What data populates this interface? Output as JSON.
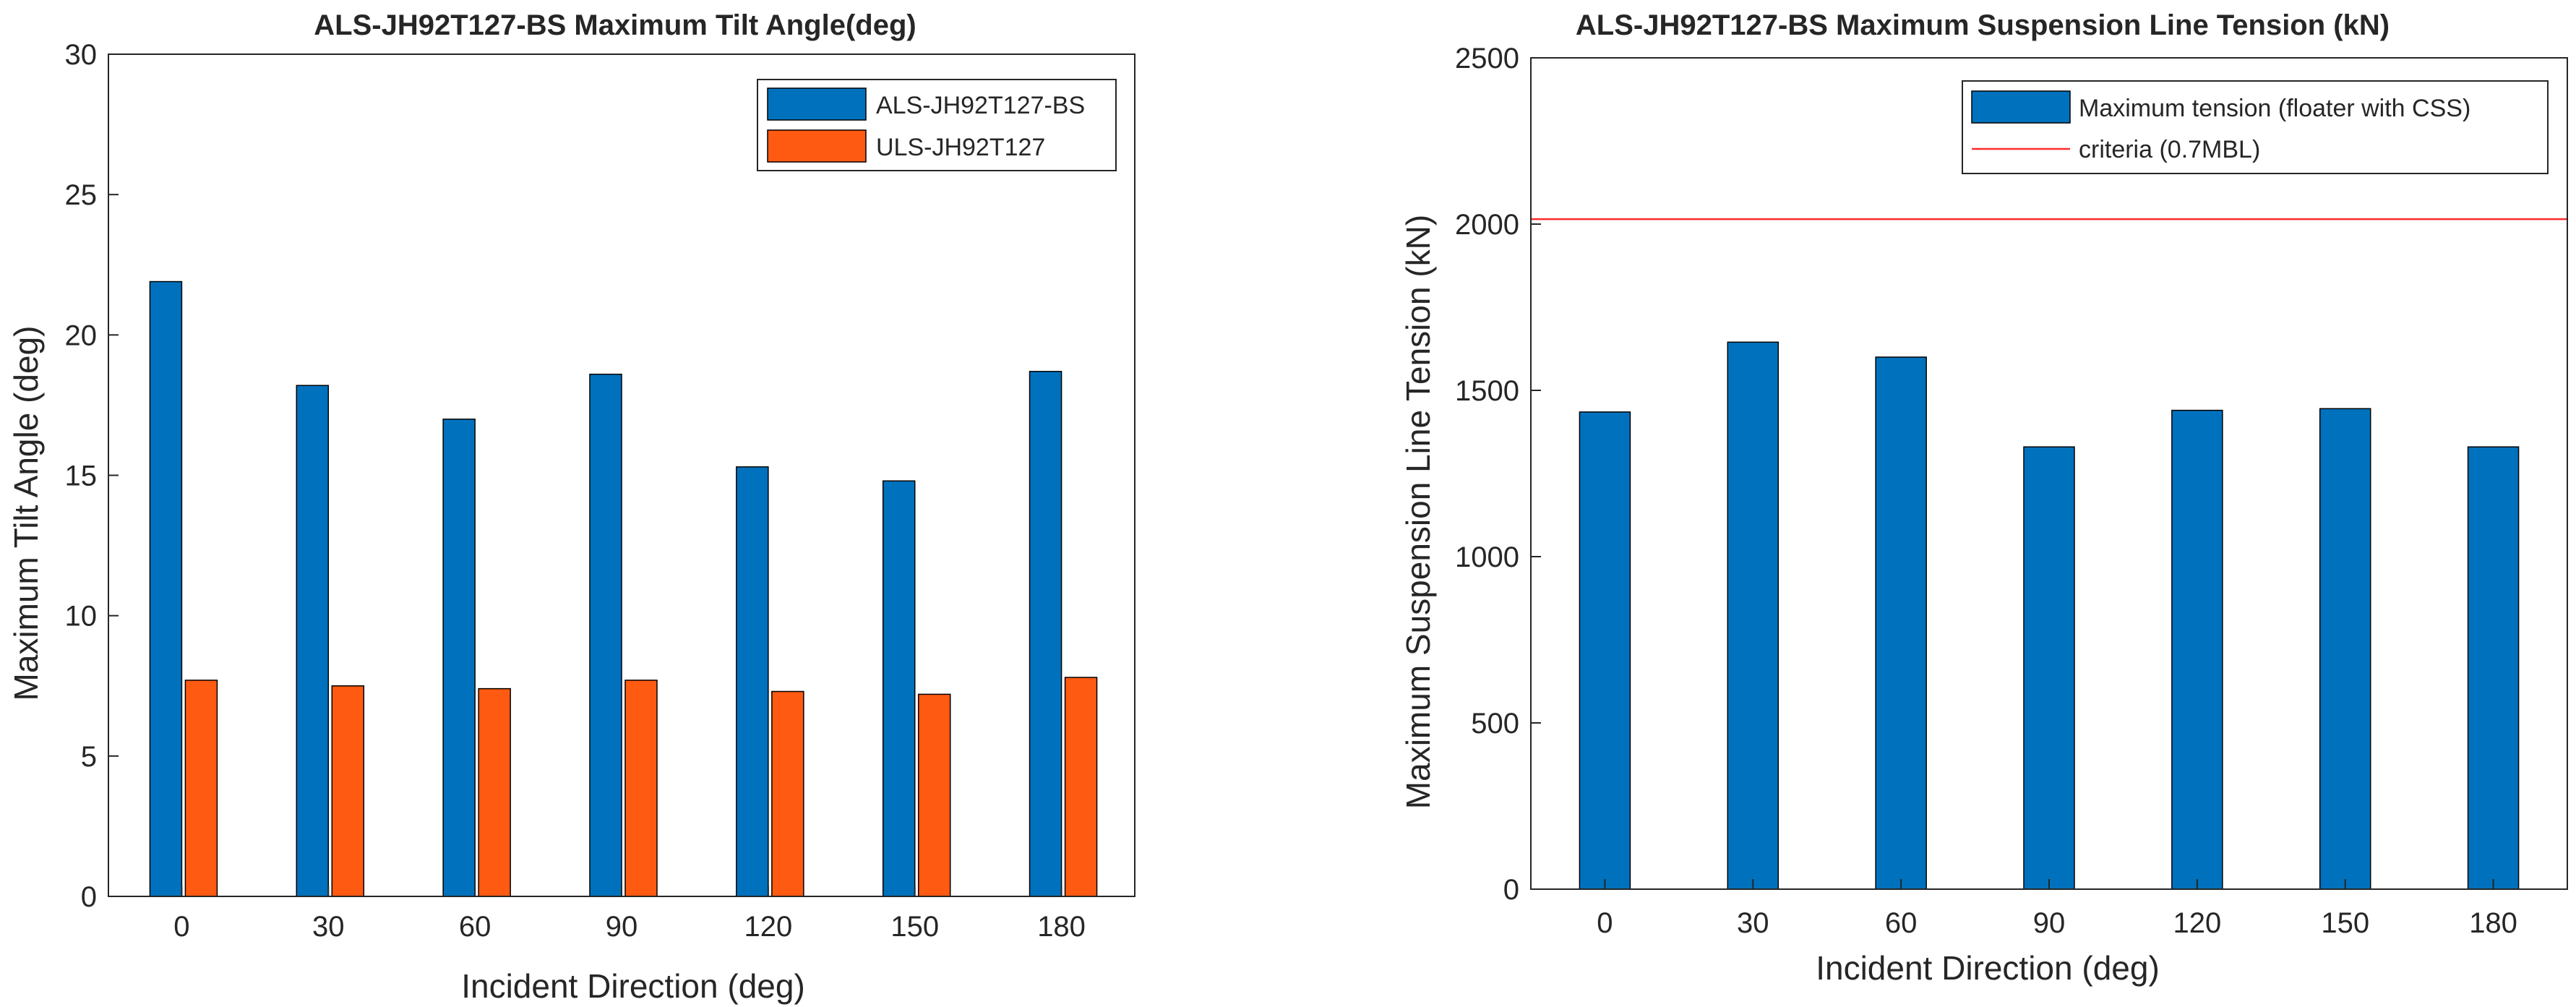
{
  "chart_data": [
    {
      "type": "bar",
      "title": "ALS-JH92T127-BS Maximum Tilt Angle(deg)",
      "xlabel": "Incident Direction (deg)",
      "ylabel": "Maximum Tilt Angle (deg)",
      "categories": [
        "0",
        "30",
        "60",
        "90",
        "120",
        "150",
        "180"
      ],
      "ylim": [
        0,
        30
      ],
      "yticks": [
        "0",
        "5",
        "10",
        "15",
        "20",
        "25",
        "30"
      ],
      "grid": false,
      "legend_position": "top-right",
      "series": [
        {
          "name": "ALS-JH92T127-BS",
          "color": "#0072BD",
          "values": [
            21.9,
            18.2,
            17.0,
            18.6,
            15.3,
            14.8,
            18.7
          ]
        },
        {
          "name": "ULS-JH92T127",
          "color": "#FF5A12",
          "values": [
            7.7,
            7.5,
            7.4,
            7.7,
            7.3,
            7.2,
            7.8
          ]
        }
      ]
    },
    {
      "type": "bar",
      "title": "ALS-JH92T127-BS Maximum Suspension Line Tension (kN)",
      "xlabel": "Incident Direction (deg)",
      "ylabel": "Maximum Suspension Line Tension (kN)",
      "categories": [
        "0",
        "30",
        "60",
        "90",
        "120",
        "150",
        "180"
      ],
      "ylim": [
        0,
        2500
      ],
      "yticks": [
        "0",
        "500",
        "1000",
        "1500",
        "2000",
        "2500"
      ],
      "grid": false,
      "legend_position": "top-right",
      "series": [
        {
          "name": "Maximum tension (floater with CSS)",
          "color": "#0072BD",
          "values": [
            1435,
            1645,
            1600,
            1330,
            1440,
            1445,
            1330
          ]
        }
      ],
      "reference_lines": [
        {
          "name": "criteria (0.7MBL)",
          "color": "#FF2A2A",
          "value": 2015
        }
      ]
    }
  ]
}
